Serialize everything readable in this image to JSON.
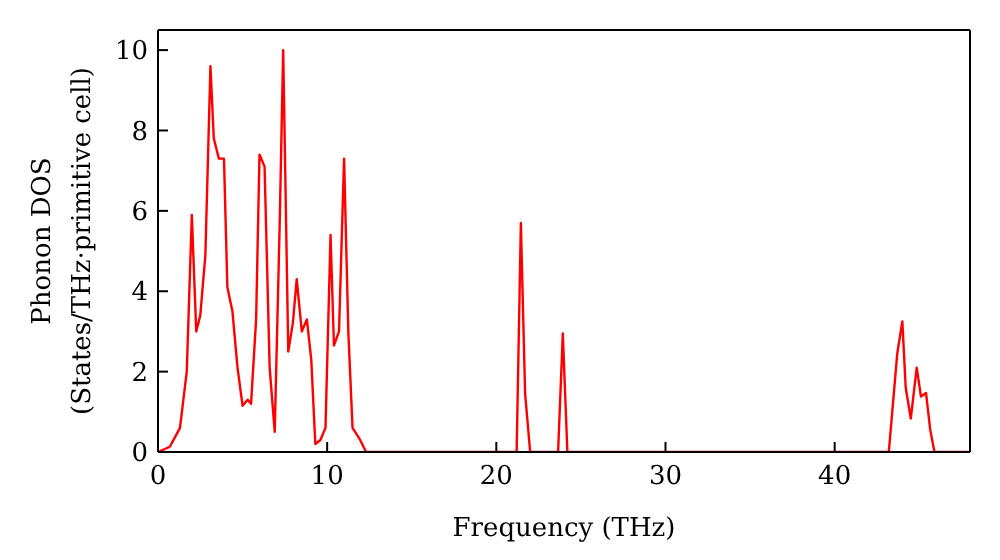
{
  "chart_data": {
    "type": "line",
    "xlabel": "Frequency (THz)",
    "ylabel": "Phonon DOS\n(States/THz·primitive cell)",
    "x": [
      0,
      0.7,
      1.3,
      1.7,
      2.0,
      2.26,
      2.5,
      2.8,
      3.1,
      3.3,
      3.6,
      3.9,
      4.1,
      4.4,
      4.7,
      5.0,
      5.3,
      5.5,
      5.8,
      6.0,
      6.3,
      6.6,
      6.9,
      7.2,
      7.4,
      7.7,
      7.97,
      8.2,
      8.5,
      8.8,
      9.06,
      9.3,
      9.6,
      9.9,
      10.2,
      10.4,
      10.7,
      11.0,
      11.25,
      11.5,
      11.95,
      12.3,
      20.9,
      21.2,
      21.45,
      21.7,
      22.0,
      23.4,
      23.65,
      23.93,
      24.2,
      43.0,
      43.2,
      43.7,
      44.0,
      44.2,
      44.5,
      44.85,
      45.1,
      45.4,
      45.65,
      45.9,
      48
    ],
    "series": [
      {
        "color": "#ff0000",
        "values": [
          0,
          0.13,
          0.6,
          2.0,
          5.9,
          3.0,
          3.4,
          4.9,
          9.6,
          7.8,
          7.3,
          7.3,
          4.1,
          3.5,
          2.1,
          1.15,
          1.3,
          1.2,
          3.3,
          7.4,
          7.1,
          2.1,
          0.5,
          5.8,
          10.0,
          2.5,
          3.2,
          4.3,
          3.0,
          3.3,
          2.3,
          0.2,
          0.3,
          0.6,
          5.4,
          2.65,
          3.0,
          7.3,
          3.0,
          0.6,
          0.3,
          0,
          0,
          0,
          5.7,
          1.46,
          0,
          0,
          0,
          2.95,
          0,
          0,
          0,
          2.45,
          3.25,
          1.6,
          0.83,
          2.1,
          1.38,
          1.47,
          0.55,
          0,
          0
        ]
      }
    ],
    "xlim": [
      0,
      48
    ],
    "xticks": [
      0,
      10,
      20,
      30,
      40
    ],
    "ylim": [
      0,
      10.5
    ],
    "yticks": [
      0,
      2,
      4,
      6,
      8,
      10
    ],
    "grid": false,
    "legend": false,
    "marker": "none",
    "line_style": "solid"
  }
}
